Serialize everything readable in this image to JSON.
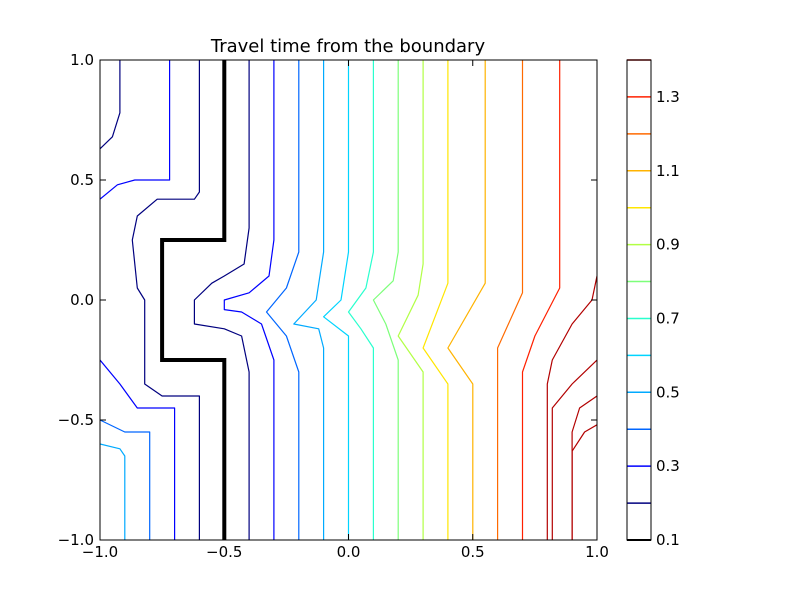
{
  "chart_data": {
    "type": "contour",
    "title": "Travel time from the boundary",
    "xlabel": "",
    "ylabel": "",
    "xlim": [
      -1.0,
      1.0
    ],
    "ylim": [
      -1.0,
      1.0
    ],
    "x_ticks": [
      "−1.0",
      "−0.5",
      "0.0",
      "0.5",
      "1.0"
    ],
    "y_ticks": [
      "−1.0",
      "−0.5",
      "0.0",
      "0.5",
      "1.0"
    ],
    "colorbar": {
      "range": [
        0.1,
        1.4
      ],
      "tick_labels": [
        "0.1",
        "0.3",
        "0.5",
        "0.7",
        "0.9",
        "1.1",
        "1.3"
      ],
      "levels": [
        0.1,
        0.2,
        0.3,
        0.4,
        0.5,
        0.6,
        0.7,
        0.8,
        0.9,
        1.0,
        1.1,
        1.2,
        1.3,
        1.4
      ],
      "colors": [
        "#000000",
        "#00007f",
        "#0000ff",
        "#0066ff",
        "#00aaff",
        "#00d4ff",
        "#29ffce",
        "#7dff7a",
        "#b2ff45",
        "#ffe600",
        "#ffb300",
        "#ff6a00",
        "#ff2000",
        "#b20000"
      ]
    },
    "boundary": {
      "level": 0.1,
      "points": [
        [
          -0.5,
          1.0
        ],
        [
          -0.5,
          0.25
        ],
        [
          -0.75,
          0.25
        ],
        [
          -0.75,
          -0.25
        ],
        [
          -0.5,
          -0.25
        ],
        [
          -0.5,
          -1.0
        ]
      ]
    },
    "contours": [
      {
        "level": 0.2,
        "segments": [
          [
            [
              -1.0,
              0.63
            ],
            [
              -0.95,
              0.68
            ],
            [
              -0.92,
              0.78
            ],
            [
              -0.92,
              1.0
            ]
          ],
          [
            [
              -0.6,
              1.0
            ],
            [
              -0.6,
              0.45
            ],
            [
              -0.62,
              0.42
            ],
            [
              -0.77,
              0.42
            ],
            [
              -0.85,
              0.35
            ],
            [
              -0.87,
              0.25
            ],
            [
              -0.85,
              0.05
            ],
            [
              -0.82,
              0.0
            ],
            [
              -0.82,
              -0.35
            ],
            [
              -0.75,
              -0.4
            ],
            [
              -0.6,
              -0.4
            ],
            [
              -0.6,
              -1.0
            ]
          ],
          [
            [
              -0.4,
              1.0
            ],
            [
              -0.4,
              0.3
            ],
            [
              -0.42,
              0.15
            ],
            [
              -0.5,
              0.1
            ],
            [
              -0.55,
              0.07
            ],
            [
              -0.62,
              0.0
            ],
            [
              -0.62,
              -0.1
            ],
            [
              -0.5,
              -0.12
            ],
            [
              -0.43,
              -0.15
            ],
            [
              -0.4,
              -0.3
            ],
            [
              -0.4,
              -1.0
            ]
          ]
        ]
      },
      {
        "level": 0.3,
        "segments": [
          [
            [
              -1.0,
              0.42
            ],
            [
              -0.93,
              0.48
            ],
            [
              -0.86,
              0.5
            ],
            [
              -0.72,
              0.5
            ],
            [
              -0.72,
              1.0
            ]
          ],
          [
            [
              -0.3,
              1.0
            ],
            [
              -0.3,
              0.25
            ],
            [
              -0.32,
              0.1
            ],
            [
              -0.4,
              0.03
            ],
            [
              -0.5,
              0.0
            ],
            [
              -0.5,
              -0.04
            ],
            [
              -0.43,
              -0.05
            ],
            [
              -0.35,
              -0.1
            ],
            [
              -0.3,
              -0.25
            ],
            [
              -0.3,
              -1.0
            ]
          ],
          [
            [
              -1.0,
              -0.25
            ],
            [
              -0.92,
              -0.35
            ],
            [
              -0.85,
              -0.45
            ],
            [
              -0.7,
              -0.45
            ],
            [
              -0.7,
              -1.0
            ]
          ]
        ]
      },
      {
        "level": 0.4,
        "segments": [
          [
            [
              -0.2,
              1.0
            ],
            [
              -0.2,
              0.2
            ],
            [
              -0.25,
              0.05
            ],
            [
              -0.33,
              -0.05
            ],
            [
              -0.25,
              -0.15
            ],
            [
              -0.2,
              -0.3
            ],
            [
              -0.2,
              -1.0
            ]
          ],
          [
            [
              -1.0,
              -0.5
            ],
            [
              -0.9,
              -0.55
            ],
            [
              -0.8,
              -0.55
            ],
            [
              -0.8,
              -1.0
            ]
          ]
        ]
      },
      {
        "level": 0.5,
        "segments": [
          [
            [
              -0.1,
              1.0
            ],
            [
              -0.1,
              0.2
            ],
            [
              -0.13,
              0.0
            ],
            [
              -0.22,
              -0.1
            ],
            [
              -0.12,
              -0.12
            ],
            [
              -0.1,
              -0.2
            ],
            [
              -0.1,
              -1.0
            ]
          ],
          [
            [
              -1.0,
              -0.6
            ],
            [
              -0.92,
              -0.62
            ],
            [
              -0.9,
              -0.65
            ],
            [
              -0.9,
              -1.0
            ]
          ]
        ]
      },
      {
        "level": 0.6,
        "segments": [
          [
            [
              0.0,
              1.0
            ],
            [
              0.0,
              0.2
            ],
            [
              -0.03,
              0.0
            ],
            [
              -0.1,
              -0.07
            ],
            [
              0.0,
              -0.15
            ],
            [
              0.0,
              -1.0
            ]
          ]
        ]
      },
      {
        "level": 0.7,
        "segments": [
          [
            [
              0.1,
              1.0
            ],
            [
              0.1,
              0.2
            ],
            [
              0.07,
              0.05
            ],
            [
              0.0,
              -0.05
            ],
            [
              0.05,
              -0.12
            ],
            [
              0.1,
              -0.2
            ],
            [
              0.1,
              -1.0
            ]
          ]
        ]
      },
      {
        "level": 0.8,
        "segments": [
          [
            [
              0.2,
              1.0
            ],
            [
              0.2,
              0.2
            ],
            [
              0.18,
              0.08
            ],
            [
              0.1,
              0.0
            ],
            [
              0.15,
              -0.1
            ],
            [
              0.2,
              -0.25
            ],
            [
              0.2,
              -1.0
            ]
          ]
        ]
      },
      {
        "level": 0.9,
        "segments": [
          [
            [
              0.3,
              1.0
            ],
            [
              0.3,
              0.15
            ],
            [
              0.28,
              0.02
            ],
            [
              0.2,
              -0.15
            ],
            [
              0.3,
              -0.3
            ],
            [
              0.3,
              -1.0
            ]
          ]
        ]
      },
      {
        "level": 1.0,
        "segments": [
          [
            [
              0.4,
              1.0
            ],
            [
              0.4,
              0.07
            ],
            [
              0.3,
              -0.2
            ],
            [
              0.4,
              -0.35
            ],
            [
              0.4,
              -1.0
            ]
          ]
        ]
      },
      {
        "level": 1.1,
        "segments": [
          [
            [
              0.55,
              1.0
            ],
            [
              0.55,
              0.07
            ],
            [
              0.4,
              -0.2
            ],
            [
              0.5,
              -0.35
            ],
            [
              0.5,
              -1.0
            ]
          ]
        ]
      },
      {
        "level": 1.2,
        "segments": [
          [
            [
              0.7,
              1.0
            ],
            [
              0.7,
              0.03
            ],
            [
              0.6,
              -0.2
            ],
            [
              0.6,
              -0.35
            ],
            [
              0.6,
              -1.0
            ]
          ]
        ]
      },
      {
        "level": 1.3,
        "segments": [
          [
            [
              0.85,
              1.0
            ],
            [
              0.85,
              0.05
            ],
            [
              0.75,
              -0.15
            ],
            [
              0.7,
              -0.3
            ],
            [
              0.7,
              -1.0
            ]
          ]
        ]
      },
      {
        "level": 1.4,
        "segments": [
          [
            [
              1.0,
              0.1
            ],
            [
              0.98,
              0.0
            ],
            [
              0.9,
              -0.1
            ],
            [
              0.82,
              -0.25
            ],
            [
              0.8,
              -0.35
            ],
            [
              0.8,
              -1.0
            ]
          ]
        ]
      },
      {
        "level": 1.5,
        "segments": [
          [
            [
              1.0,
              -0.25
            ],
            [
              0.9,
              -0.35
            ],
            [
              0.82,
              -0.45
            ],
            [
              0.82,
              -1.0
            ]
          ]
        ]
      },
      {
        "level": 1.6,
        "segments": [
          [
            [
              1.0,
              -0.4
            ],
            [
              0.93,
              -0.45
            ],
            [
              0.9,
              -0.55
            ],
            [
              0.9,
              -1.0
            ]
          ]
        ]
      },
      {
        "level": 1.7,
        "segments": [
          [
            [
              1.0,
              -0.52
            ],
            [
              0.95,
              -0.55
            ],
            [
              0.9,
              -0.63
            ],
            [
              0.9,
              -1.0
            ]
          ]
        ]
      }
    ]
  }
}
